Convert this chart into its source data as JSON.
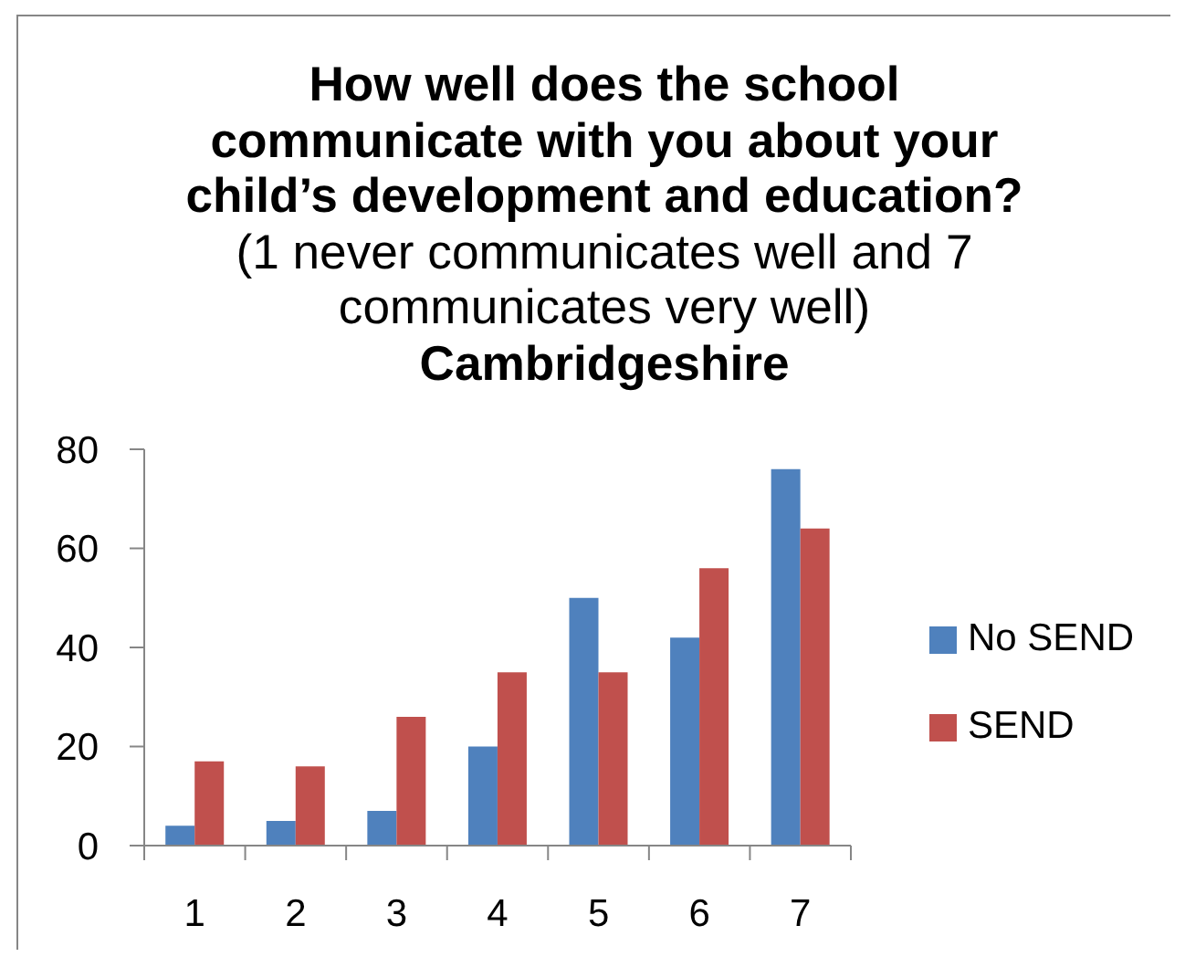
{
  "chart_data": {
    "type": "bar",
    "title": "How well does the school communicate with you about your child’s development and education?",
    "subtitle": "(1 never communicates well and 7 communicates very well)",
    "annotations": [
      "Cambridgeshire"
    ],
    "categories": [
      "1",
      "2",
      "3",
      "4",
      "5",
      "6",
      "7"
    ],
    "series": [
      {
        "name": "No SEND",
        "color": "#4f81bd",
        "values": [
          4,
          5,
          7,
          20,
          50,
          42,
          76
        ]
      },
      {
        "name": "SEND",
        "color": "#c0504d",
        "values": [
          17,
          16,
          26,
          35,
          35,
          56,
          64
        ]
      }
    ],
    "ylim": [
      0,
      80
    ],
    "yticks": [
      0,
      20,
      40,
      60,
      80
    ],
    "legend": "right"
  }
}
